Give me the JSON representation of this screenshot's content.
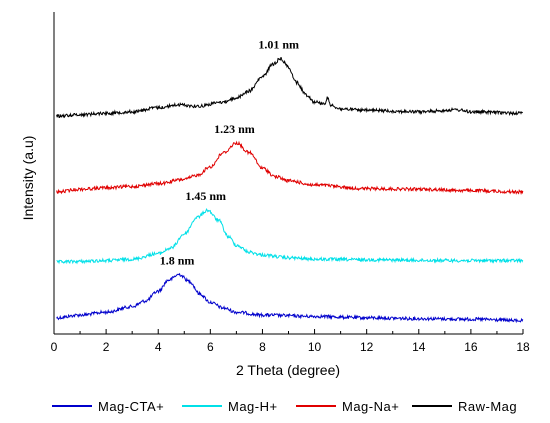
{
  "chart_data": {
    "type": "line",
    "title": "",
    "xlabel": "2 Theta (degree)",
    "ylabel": "Intensity (a.u)",
    "xlim": [
      0,
      18
    ],
    "xticks": [
      0,
      2,
      4,
      6,
      8,
      10,
      12,
      14,
      16,
      18
    ],
    "yticks_shown": false,
    "grid": false,
    "legend_position": "bottom",
    "series": [
      {
        "name": "Mag-CTA+",
        "color": "#0000cc",
        "x": [
          0.1,
          1,
          2,
          3,
          3.5,
          4,
          4.4,
          4.8,
          5.2,
          5.6,
          6,
          6.5,
          7,
          8,
          10,
          12,
          14,
          16,
          18
        ],
        "y": [
          0.15,
          0.25,
          0.35,
          0.55,
          0.75,
          1.1,
          1.5,
          1.7,
          1.45,
          1.0,
          0.7,
          0.5,
          0.35,
          0.25,
          0.2,
          0.15,
          0.12,
          0.1,
          0.05
        ]
      },
      {
        "name": "Mag-H+",
        "color": "#00e0e8",
        "x": [
          0.1,
          1,
          2,
          3,
          4,
          4.5,
          5,
          5.5,
          5.9,
          6.3,
          6.7,
          7,
          7.5,
          8,
          9,
          10,
          12,
          14,
          16,
          18
        ],
        "y": [
          0.0,
          0.02,
          0.05,
          0.1,
          0.3,
          0.5,
          1.0,
          1.6,
          1.85,
          1.5,
          0.9,
          0.6,
          0.35,
          0.25,
          0.15,
          0.1,
          0.08,
          0.06,
          0.05,
          0.05
        ]
      },
      {
        "name": "Mag-Na+",
        "color": "#e00000",
        "x": [
          0.1,
          1,
          2,
          3,
          4,
          5,
          5.5,
          6,
          6.5,
          7,
          7.5,
          8,
          8.5,
          9,
          10,
          12,
          14,
          16,
          18
        ],
        "y": [
          0.0,
          0.1,
          0.15,
          0.2,
          0.3,
          0.45,
          0.6,
          0.9,
          1.4,
          1.75,
          1.4,
          0.85,
          0.55,
          0.4,
          0.25,
          0.12,
          0.1,
          0.05,
          0.0
        ]
      },
      {
        "name": "Raw-Mag",
        "color": "#000000",
        "x": [
          0.1,
          1,
          2,
          3,
          4,
          4.8,
          5.5,
          6.5,
          7,
          7.5,
          8,
          8.4,
          8.7,
          9,
          9.3,
          9.7,
          10,
          10.4,
          10.5,
          10.6,
          11,
          12,
          14,
          15.5,
          16,
          18
        ],
        "y": [
          0.0,
          0.05,
          0.1,
          0.15,
          0.3,
          0.4,
          0.35,
          0.5,
          0.65,
          0.9,
          1.4,
          1.85,
          2.05,
          1.75,
          1.2,
          0.75,
          0.5,
          0.45,
          0.65,
          0.4,
          0.25,
          0.2,
          0.15,
          0.22,
          0.15,
          0.1
        ]
      }
    ],
    "annotations": [
      {
        "text": "1.01 nm",
        "x": 8.7,
        "series": "Raw-Mag"
      },
      {
        "text": "1.23 nm",
        "x": 7.0,
        "series": "Mag-Na+"
      },
      {
        "text": "1.45 nm",
        "x": 5.9,
        "series": "Mag-H+"
      },
      {
        "text": "1.8 nm",
        "x": 4.8,
        "series": "Mag-CTA+"
      }
    ]
  }
}
